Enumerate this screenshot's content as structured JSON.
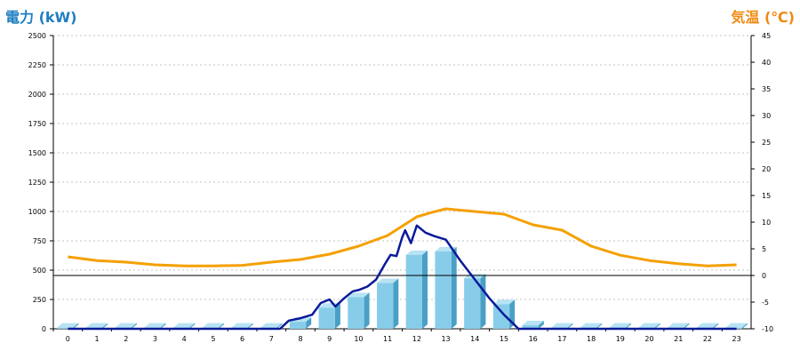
{
  "left_title": "電力 (kW)",
  "right_title": "気温 (℃)",
  "chart_data": {
    "type": "bar",
    "x": [
      0,
      1,
      2,
      3,
      4,
      5,
      6,
      7,
      8,
      9,
      10,
      11,
      12,
      13,
      14,
      15,
      16,
      17,
      18,
      19,
      20,
      21,
      22,
      23
    ],
    "x_ticks": [
      "0",
      "1",
      "2",
      "3",
      "4",
      "5",
      "6",
      "7",
      "8",
      "9",
      "10",
      "11",
      "12",
      "13",
      "14",
      "15",
      "16",
      "17",
      "18",
      "19",
      "20",
      "21",
      "22",
      "23"
    ],
    "grid": true,
    "y_left": {
      "label": "電力 (kW)",
      "range": [
        0,
        2500
      ],
      "ticks": [
        0,
        250,
        500,
        750,
        1000,
        1250,
        1500,
        1750,
        2000,
        2250,
        2500
      ]
    },
    "y_right": {
      "label": "気温 (℃)",
      "range": [
        -10,
        45
      ],
      "ticks": [
        -10,
        -5,
        0,
        5,
        10,
        15,
        20,
        25,
        30,
        35,
        40,
        45
      ]
    },
    "series": [
      {
        "type": "bar",
        "axis": "left",
        "values": [
          10,
          10,
          10,
          10,
          10,
          10,
          10,
          10,
          60,
          180,
          270,
          390,
          630,
          660,
          430,
          210,
          30,
          10,
          10,
          10,
          10,
          10,
          10,
          10
        ],
        "color": "#87cde9"
      },
      {
        "type": "line",
        "axis": "right",
        "color": "#f5a000",
        "x": [
          0,
          1,
          2,
          3,
          4,
          5,
          6,
          7,
          8,
          9,
          10,
          11,
          12,
          12.5,
          13,
          14,
          15,
          16,
          17,
          18,
          19,
          20,
          21,
          22,
          23
        ],
        "values": [
          3.5,
          2.8,
          2.5,
          2.0,
          1.8,
          1.8,
          1.9,
          2.5,
          3.0,
          4.0,
          5.5,
          7.5,
          11.0,
          11.8,
          12.5,
          12.0,
          11.5,
          9.5,
          8.5,
          5.5,
          3.8,
          2.8,
          2.2,
          1.8,
          2.0
        ]
      },
      {
        "type": "line",
        "axis": "left",
        "color": "#0a1a99",
        "x": [
          0,
          1,
          2,
          3,
          4,
          5,
          6,
          7,
          7.3,
          7.6,
          8,
          8.4,
          8.7,
          9,
          9.2,
          9.5,
          9.8,
          10,
          10.3,
          10.6,
          10.9,
          11.1,
          11.3,
          11.5,
          11.6,
          11.8,
          12,
          12.3,
          12.6,
          13,
          13.5,
          14,
          14.5,
          15,
          15.5,
          16,
          17,
          18,
          19,
          20,
          21,
          22,
          23
        ],
        "values": [
          0,
          0,
          0,
          0,
          0,
          0,
          0,
          0,
          0,
          70,
          90,
          120,
          220,
          250,
          190,
          260,
          320,
          330,
          360,
          420,
          550,
          630,
          620,
          780,
          840,
          730,
          880,
          820,
          790,
          760,
          580,
          420,
          260,
          120,
          0,
          0,
          0,
          0,
          0,
          0,
          0,
          0,
          0
        ]
      }
    ],
    "reference_lines": [
      {
        "axis": "right",
        "value": 0,
        "color": "#000000"
      }
    ]
  }
}
